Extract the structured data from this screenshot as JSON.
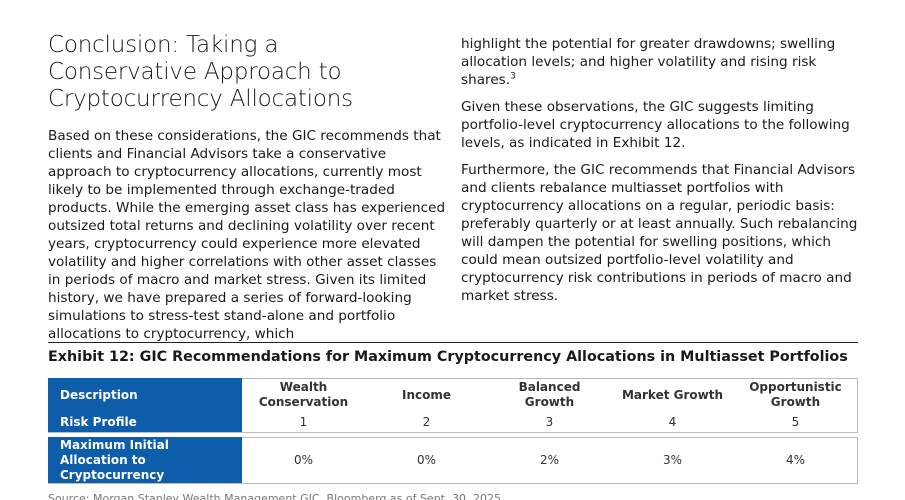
{
  "heading": "Conclusion: Taking a Conservative Approach to Cryptocurrency Allocations",
  "left_paragraph": "Based on these considerations, the GIC recommends that clients and Financial Advisors take a conservative approach to cryptocurrency allocations, currently most likely to be implemented through exchange-traded products. While the emerging asset class has experienced outsized total returns and declining volatility over recent years, cryptocurrency could experience more elevated volatility and higher correlations with other asset classes in periods of macro and market stress. Given its limited history, we have prepared a series of forward-looking simulations to stress-test stand-alone and portfolio allocations to cryptocurrency, which",
  "right": {
    "continuation": "highlight the potential for greater drawdowns; swelling allocation levels; and higher volatility and rising risk shares.",
    "footnote": "3",
    "paragraphs": [
      "Given these observations, the GIC suggests limiting portfolio-level cryptocurrency allocations to the following levels, as indicated in Exhibit 12.",
      "Furthermore, the GIC recommends that Financial Advisors and clients rebalance multiasset portfolios with cryptocurrency allocations on a regular, periodic basis: preferably quarterly or at least annually. Such rebalancing will dampen the potential for swelling positions, which could mean outsized portfolio-level volatility and cryptocurrency risk contributions in periods of macro and market stress."
    ]
  },
  "exhibit": {
    "title": "Exhibit 12: GIC Recommendations for Maximum Cryptocurrency Allocations in Multiasset Portfolios",
    "table": {
      "rows": [
        [
          "Description",
          "Wealth Conservation",
          "Income",
          "Balanced Growth",
          "Market Growth",
          "Opportunistic Growth"
        ],
        [
          "Risk Profile",
          "1",
          "2",
          "3",
          "4",
          "5"
        ],
        [
          "Maximum Initial Allocation to Cryptocurrency",
          "0%",
          "0%",
          "2%",
          "3%",
          "4%"
        ]
      ]
    },
    "source": "Source: Morgan Stanley Wealth Management GIC, Bloomberg as of Sept. 30, 2025"
  }
}
